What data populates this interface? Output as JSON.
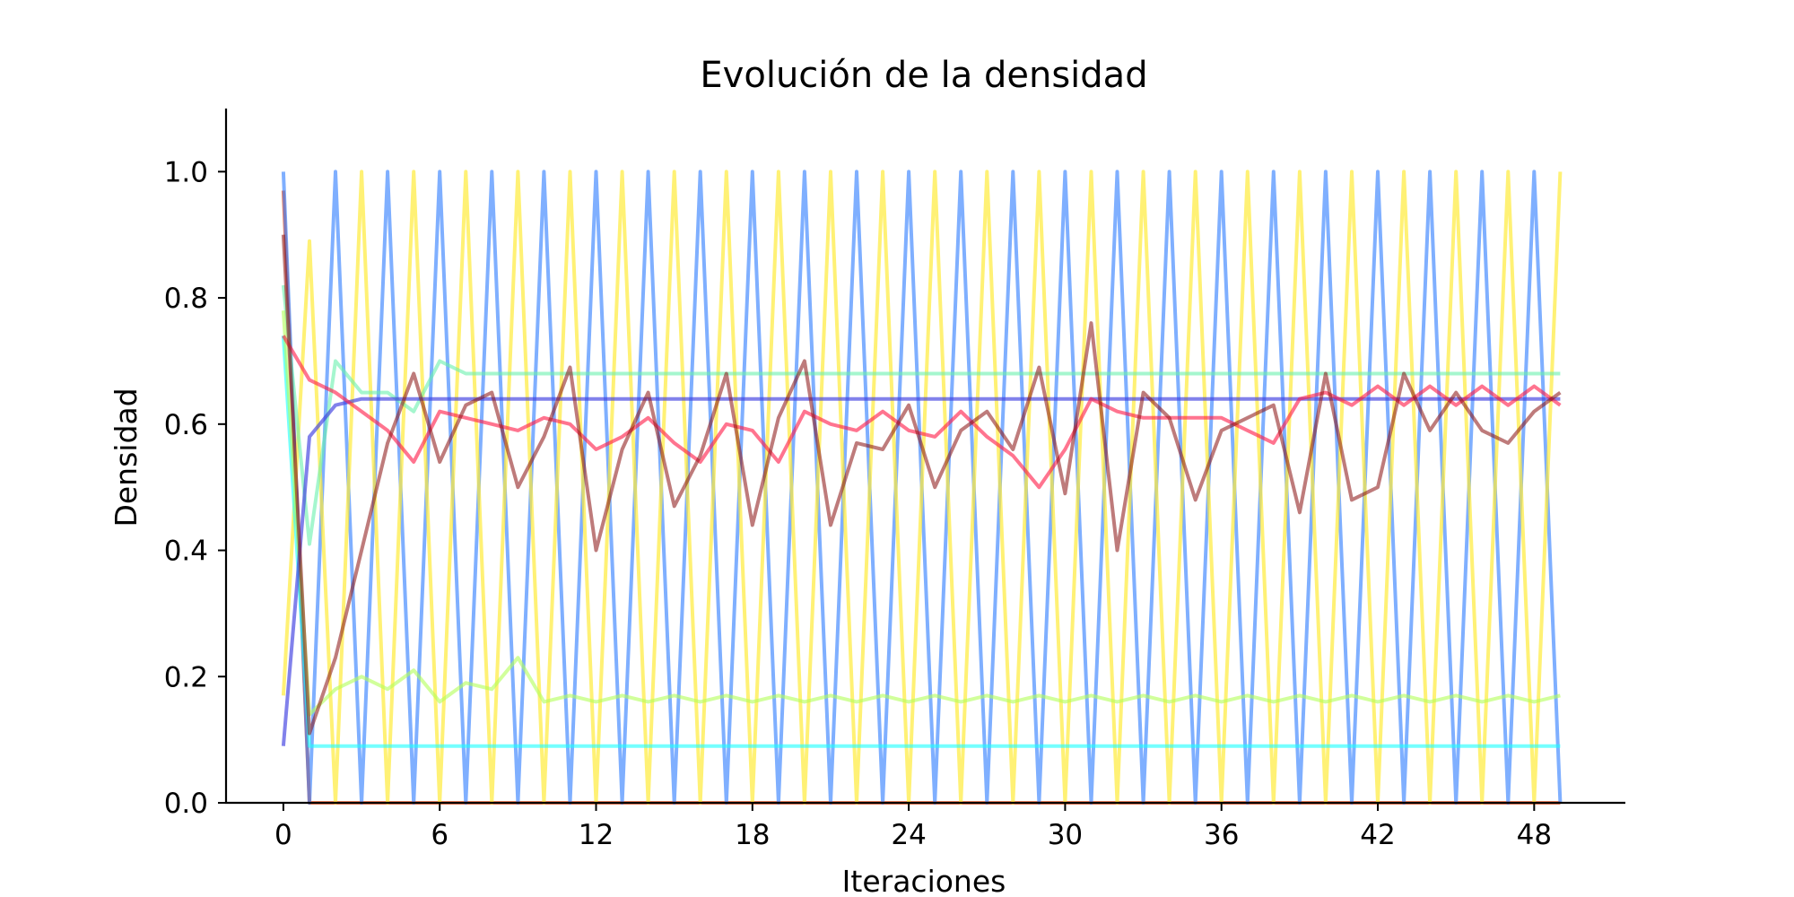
{
  "chart_data": {
    "type": "line",
    "title": "Evolución de la densidad",
    "xlabel": "Iteraciones",
    "ylabel": "Densidad",
    "xlim": [
      -2.2,
      51.5
    ],
    "ylim": [
      0,
      1.1
    ],
    "xticks": [
      0,
      6,
      12,
      18,
      24,
      30,
      36,
      42,
      48
    ],
    "yticks": [
      0.0,
      0.2,
      0.4,
      0.6,
      0.8,
      1.0
    ],
    "ytick_labels": [
      "0.0",
      "0.2",
      "0.4",
      "0.6",
      "0.8",
      "1.0"
    ],
    "grid": false,
    "legend": "none",
    "x": [
      0,
      1,
      2,
      3,
      4,
      5,
      6,
      7,
      8,
      9,
      10,
      11,
      12,
      13,
      14,
      15,
      16,
      17,
      18,
      19,
      20,
      21,
      22,
      23,
      24,
      25,
      26,
      27,
      28,
      29,
      30,
      31,
      32,
      33,
      34,
      35,
      36,
      37,
      38,
      39,
      40,
      41,
      42,
      43,
      44,
      45,
      46,
      47,
      48,
      49
    ],
    "series": [
      {
        "color": "#F4511E",
        "opacity": 0.7,
        "values": [
          0.97,
          0,
          0,
          0,
          0,
          0,
          0,
          0,
          0,
          0,
          0,
          0,
          0,
          0,
          0,
          0,
          0,
          0,
          0,
          0,
          0,
          0,
          0,
          0,
          0,
          0,
          0,
          0,
          0,
          0,
          0,
          0,
          0,
          0,
          0,
          0,
          0,
          0,
          0,
          0,
          0,
          0,
          0,
          0,
          0,
          0,
          0,
          0,
          0,
          0
        ]
      },
      {
        "color": "#2979FF",
        "opacity": 0.6,
        "values": [
          1.0,
          0,
          1,
          0,
          1,
          0,
          1,
          0,
          1,
          0,
          1,
          0,
          1,
          0,
          1,
          0,
          1,
          0,
          1,
          0,
          1,
          0,
          1,
          0,
          1,
          0,
          1,
          0,
          1,
          0,
          1,
          0,
          1,
          0,
          1,
          0,
          1,
          0,
          1,
          0,
          1,
          0,
          1,
          0,
          1,
          0,
          1,
          0,
          1,
          0
        ]
      },
      {
        "color": "#FFEB3B",
        "opacity": 0.7,
        "values": [
          0.17,
          0.89,
          0,
          1,
          0,
          1,
          0,
          1,
          0,
          1,
          0,
          1,
          0,
          1,
          0,
          1,
          0,
          1,
          0,
          1,
          0,
          1,
          0,
          1,
          0,
          1,
          0,
          1,
          0,
          1,
          0,
          1,
          0,
          1,
          0,
          1,
          0,
          1,
          0,
          1,
          0,
          1,
          0,
          1,
          0,
          1,
          0,
          1,
          0,
          1
        ]
      },
      {
        "color": "#18FFFF",
        "opacity": 0.6,
        "values": [
          0.74,
          0.09,
          0.09,
          0.09,
          0.09,
          0.09,
          0.09,
          0.09,
          0.09,
          0.09,
          0.09,
          0.09,
          0.09,
          0.09,
          0.09,
          0.09,
          0.09,
          0.09,
          0.09,
          0.09,
          0.09,
          0.09,
          0.09,
          0.09,
          0.09,
          0.09,
          0.09,
          0.09,
          0.09,
          0.09,
          0.09,
          0.09,
          0.09,
          0.09,
          0.09,
          0.09,
          0.09,
          0.09,
          0.09,
          0.09,
          0.09,
          0.09,
          0.09,
          0.09,
          0.09,
          0.09,
          0.09,
          0.09,
          0.09,
          0.09
        ]
      },
      {
        "color": "#69F0AE",
        "opacity": 0.6,
        "values": [
          0.82,
          0.41,
          0.7,
          0.65,
          0.65,
          0.62,
          0.7,
          0.68,
          0.68,
          0.68,
          0.68,
          0.68,
          0.68,
          0.68,
          0.68,
          0.68,
          0.68,
          0.68,
          0.68,
          0.68,
          0.68,
          0.68,
          0.68,
          0.68,
          0.68,
          0.68,
          0.68,
          0.68,
          0.68,
          0.68,
          0.68,
          0.68,
          0.68,
          0.68,
          0.68,
          0.68,
          0.68,
          0.68,
          0.68,
          0.68,
          0.68,
          0.68,
          0.68,
          0.68,
          0.68,
          0.68,
          0.68,
          0.68,
          0.68,
          0.68
        ]
      },
      {
        "color": "#B2FF59",
        "opacity": 0.6,
        "values": [
          0.78,
          0.14,
          0.18,
          0.2,
          0.18,
          0.21,
          0.16,
          0.19,
          0.18,
          0.23,
          0.16,
          0.17,
          0.16,
          0.17,
          0.16,
          0.17,
          0.16,
          0.17,
          0.16,
          0.17,
          0.16,
          0.17,
          0.16,
          0.17,
          0.16,
          0.17,
          0.16,
          0.17,
          0.16,
          0.17,
          0.16,
          0.17,
          0.16,
          0.17,
          0.16,
          0.17,
          0.16,
          0.17,
          0.16,
          0.17,
          0.16,
          0.17,
          0.16,
          0.17,
          0.16,
          0.17,
          0.16,
          0.17,
          0.16,
          0.17
        ]
      },
      {
        "color": "#3D3DE0",
        "opacity": 0.65,
        "values": [
          0.09,
          0.58,
          0.63,
          0.64,
          0.64,
          0.64,
          0.64,
          0.64,
          0.64,
          0.64,
          0.64,
          0.64,
          0.64,
          0.64,
          0.64,
          0.64,
          0.64,
          0.64,
          0.64,
          0.64,
          0.64,
          0.64,
          0.64,
          0.64,
          0.64,
          0.64,
          0.64,
          0.64,
          0.64,
          0.64,
          0.64,
          0.64,
          0.64,
          0.64,
          0.64,
          0.64,
          0.64,
          0.64,
          0.64,
          0.64,
          0.64,
          0.64,
          0.64,
          0.64,
          0.64,
          0.64,
          0.64,
          0.64,
          0.64,
          0.64
        ]
      },
      {
        "color": "#FF1744",
        "opacity": 0.6,
        "values": [
          0.74,
          0.67,
          0.65,
          0.62,
          0.59,
          0.54,
          0.62,
          0.61,
          0.6,
          0.59,
          0.61,
          0.6,
          0.56,
          0.58,
          0.61,
          0.57,
          0.54,
          0.6,
          0.59,
          0.54,
          0.62,
          0.6,
          0.59,
          0.62,
          0.59,
          0.58,
          0.62,
          0.58,
          0.55,
          0.5,
          0.56,
          0.64,
          0.62,
          0.61,
          0.61,
          0.61,
          0.61,
          0.59,
          0.57,
          0.64,
          0.65,
          0.63,
          0.66,
          0.63,
          0.66,
          0.63,
          0.66,
          0.63,
          0.66,
          0.63
        ]
      },
      {
        "color": "#880E0E",
        "opacity": 0.55,
        "values": [
          0.9,
          0.11,
          0.23,
          0.4,
          0.57,
          0.68,
          0.54,
          0.63,
          0.65,
          0.5,
          0.58,
          0.69,
          0.4,
          0.56,
          0.65,
          0.47,
          0.55,
          0.68,
          0.44,
          0.61,
          0.7,
          0.44,
          0.57,
          0.56,
          0.63,
          0.5,
          0.59,
          0.62,
          0.56,
          0.69,
          0.49,
          0.76,
          0.4,
          0.65,
          0.61,
          0.48,
          0.59,
          0.61,
          0.63,
          0.46,
          0.68,
          0.48,
          0.5,
          0.68,
          0.59,
          0.65,
          0.59,
          0.57,
          0.62,
          0.65
        ]
      }
    ]
  }
}
